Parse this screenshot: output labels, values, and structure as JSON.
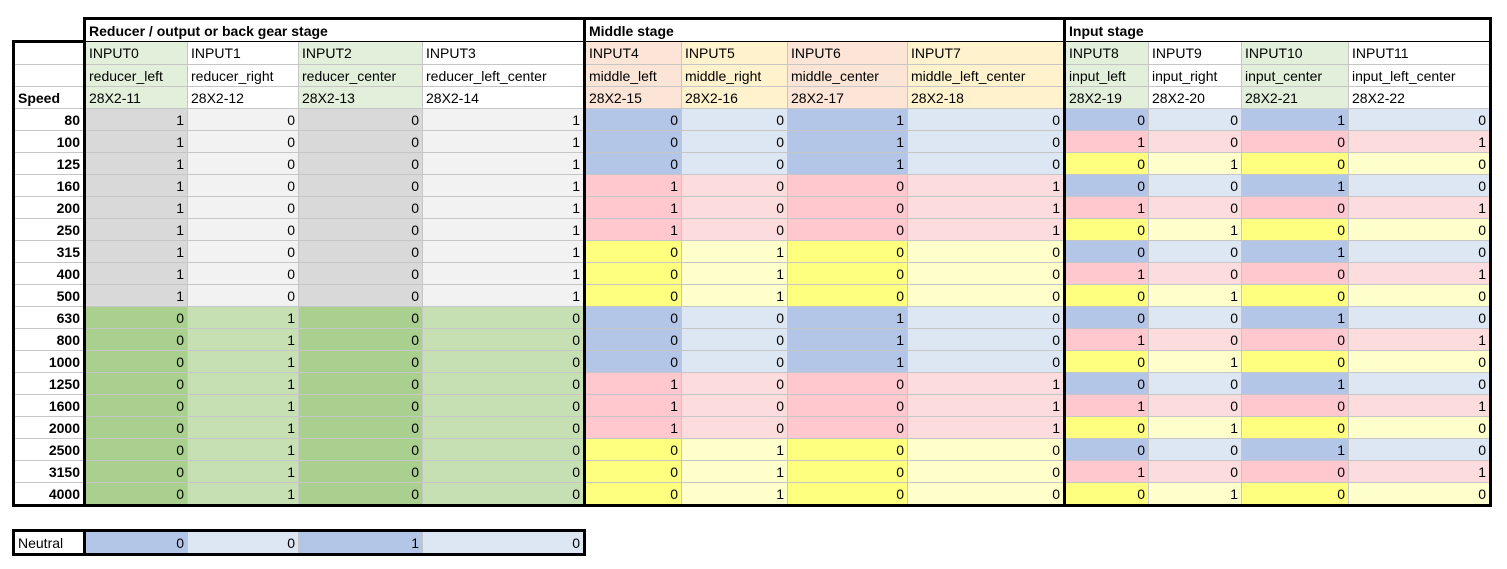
{
  "colors": {
    "gray_dark": "#d9d9d9",
    "gray_light": "#f2f2f2",
    "green_dark": "#a9d08e",
    "green_light": "#c6e0b4",
    "green_header": "#e2efda",
    "blue_dark": "#b4c6e7",
    "blue_light": "#dde6f3",
    "red_dark": "#ffc7ce",
    "red_light": "#fcdcdc",
    "yellow_dark": "#ffff7f",
    "yellow_light": "#ffffcc",
    "orange_header": "#fce4d6",
    "peach_header": "#fff2cc"
  },
  "stages": [
    {
      "label": "Reducer / output or back gear stage",
      "span": 4
    },
    {
      "label": "Middle stage",
      "span": 4
    },
    {
      "label": "Input stage",
      "span": 4
    }
  ],
  "columns": [
    {
      "input": "INPUT0",
      "name": "reducer_left",
      "code": "28X2-11",
      "hbg": "#e2efda"
    },
    {
      "input": "INPUT1",
      "name": "reducer_right",
      "code": "28X2-12",
      "hbg": "#ffffff"
    },
    {
      "input": "INPUT2",
      "name": "reducer_center",
      "code": "28X2-13",
      "hbg": "#e2efda"
    },
    {
      "input": "INPUT3",
      "name": "reducer_left_center",
      "code": "28X2-14",
      "hbg": "#ffffff"
    },
    {
      "input": "INPUT4",
      "name": "middle_left",
      "code": "28X2-15",
      "hbg": "#fce4d6"
    },
    {
      "input": "INPUT5",
      "name": "middle_right",
      "code": "28X2-16",
      "hbg": "#fff2cc"
    },
    {
      "input": "INPUT6",
      "name": "middle_center",
      "code": "28X2-17",
      "hbg": "#fce4d6"
    },
    {
      "input": "INPUT7",
      "name": "middle_left_center",
      "code": "28X2-18",
      "hbg": "#fff2cc"
    },
    {
      "input": "INPUT8",
      "name": "input_left",
      "code": "28X2-19",
      "hbg": "#e2efda"
    },
    {
      "input": "INPUT9",
      "name": "input_right",
      "code": "28X2-20",
      "hbg": "#ffffff"
    },
    {
      "input": "INPUT10",
      "name": "input_center",
      "code": "28X2-21",
      "hbg": "#e2efda"
    },
    {
      "input": "INPUT11",
      "name": "input_left_center",
      "code": "28X2-22",
      "hbg": "#ffffff"
    }
  ],
  "speed_label": "Speed",
  "rows": [
    {
      "speed": "80",
      "values": [
        1,
        0,
        0,
        1,
        0,
        0,
        1,
        0,
        0,
        0,
        1,
        0
      ]
    },
    {
      "speed": "100",
      "values": [
        1,
        0,
        0,
        1,
        0,
        0,
        1,
        0,
        1,
        0,
        0,
        1
      ]
    },
    {
      "speed": "125",
      "values": [
        1,
        0,
        0,
        1,
        0,
        0,
        1,
        0,
        0,
        1,
        0,
        0
      ]
    },
    {
      "speed": "160",
      "values": [
        1,
        0,
        0,
        1,
        1,
        0,
        0,
        1,
        0,
        0,
        1,
        0
      ]
    },
    {
      "speed": "200",
      "values": [
        1,
        0,
        0,
        1,
        1,
        0,
        0,
        1,
        1,
        0,
        0,
        1
      ]
    },
    {
      "speed": "250",
      "values": [
        1,
        0,
        0,
        1,
        1,
        0,
        0,
        1,
        0,
        1,
        0,
        0
      ]
    },
    {
      "speed": "315",
      "values": [
        1,
        0,
        0,
        1,
        0,
        1,
        0,
        0,
        0,
        0,
        1,
        0
      ]
    },
    {
      "speed": "400",
      "values": [
        1,
        0,
        0,
        1,
        0,
        1,
        0,
        0,
        1,
        0,
        0,
        1
      ]
    },
    {
      "speed": "500",
      "values": [
        1,
        0,
        0,
        1,
        0,
        1,
        0,
        0,
        0,
        1,
        0,
        0
      ]
    },
    {
      "speed": "630",
      "values": [
        0,
        1,
        0,
        0,
        0,
        0,
        1,
        0,
        0,
        0,
        1,
        0
      ]
    },
    {
      "speed": "800",
      "values": [
        0,
        1,
        0,
        0,
        0,
        0,
        1,
        0,
        1,
        0,
        0,
        1
      ]
    },
    {
      "speed": "1000",
      "values": [
        0,
        1,
        0,
        0,
        0,
        0,
        1,
        0,
        0,
        1,
        0,
        0
      ]
    },
    {
      "speed": "1250",
      "values": [
        0,
        1,
        0,
        0,
        1,
        0,
        0,
        1,
        0,
        0,
        1,
        0
      ]
    },
    {
      "speed": "1600",
      "values": [
        0,
        1,
        0,
        0,
        1,
        0,
        0,
        1,
        1,
        0,
        0,
        1
      ]
    },
    {
      "speed": "2000",
      "values": [
        0,
        1,
        0,
        0,
        1,
        0,
        0,
        1,
        0,
        1,
        0,
        0
      ]
    },
    {
      "speed": "2500",
      "values": [
        0,
        1,
        0,
        0,
        0,
        1,
        0,
        0,
        0,
        0,
        1,
        0
      ]
    },
    {
      "speed": "3150",
      "values": [
        0,
        1,
        0,
        0,
        0,
        1,
        0,
        0,
        1,
        0,
        0,
        1
      ]
    },
    {
      "speed": "4000",
      "values": [
        0,
        1,
        0,
        0,
        0,
        1,
        0,
        0,
        0,
        1,
        0,
        0
      ]
    }
  ],
  "neutral": {
    "label": "Neutral",
    "values": [
      0,
      0,
      1,
      0
    ]
  }
}
